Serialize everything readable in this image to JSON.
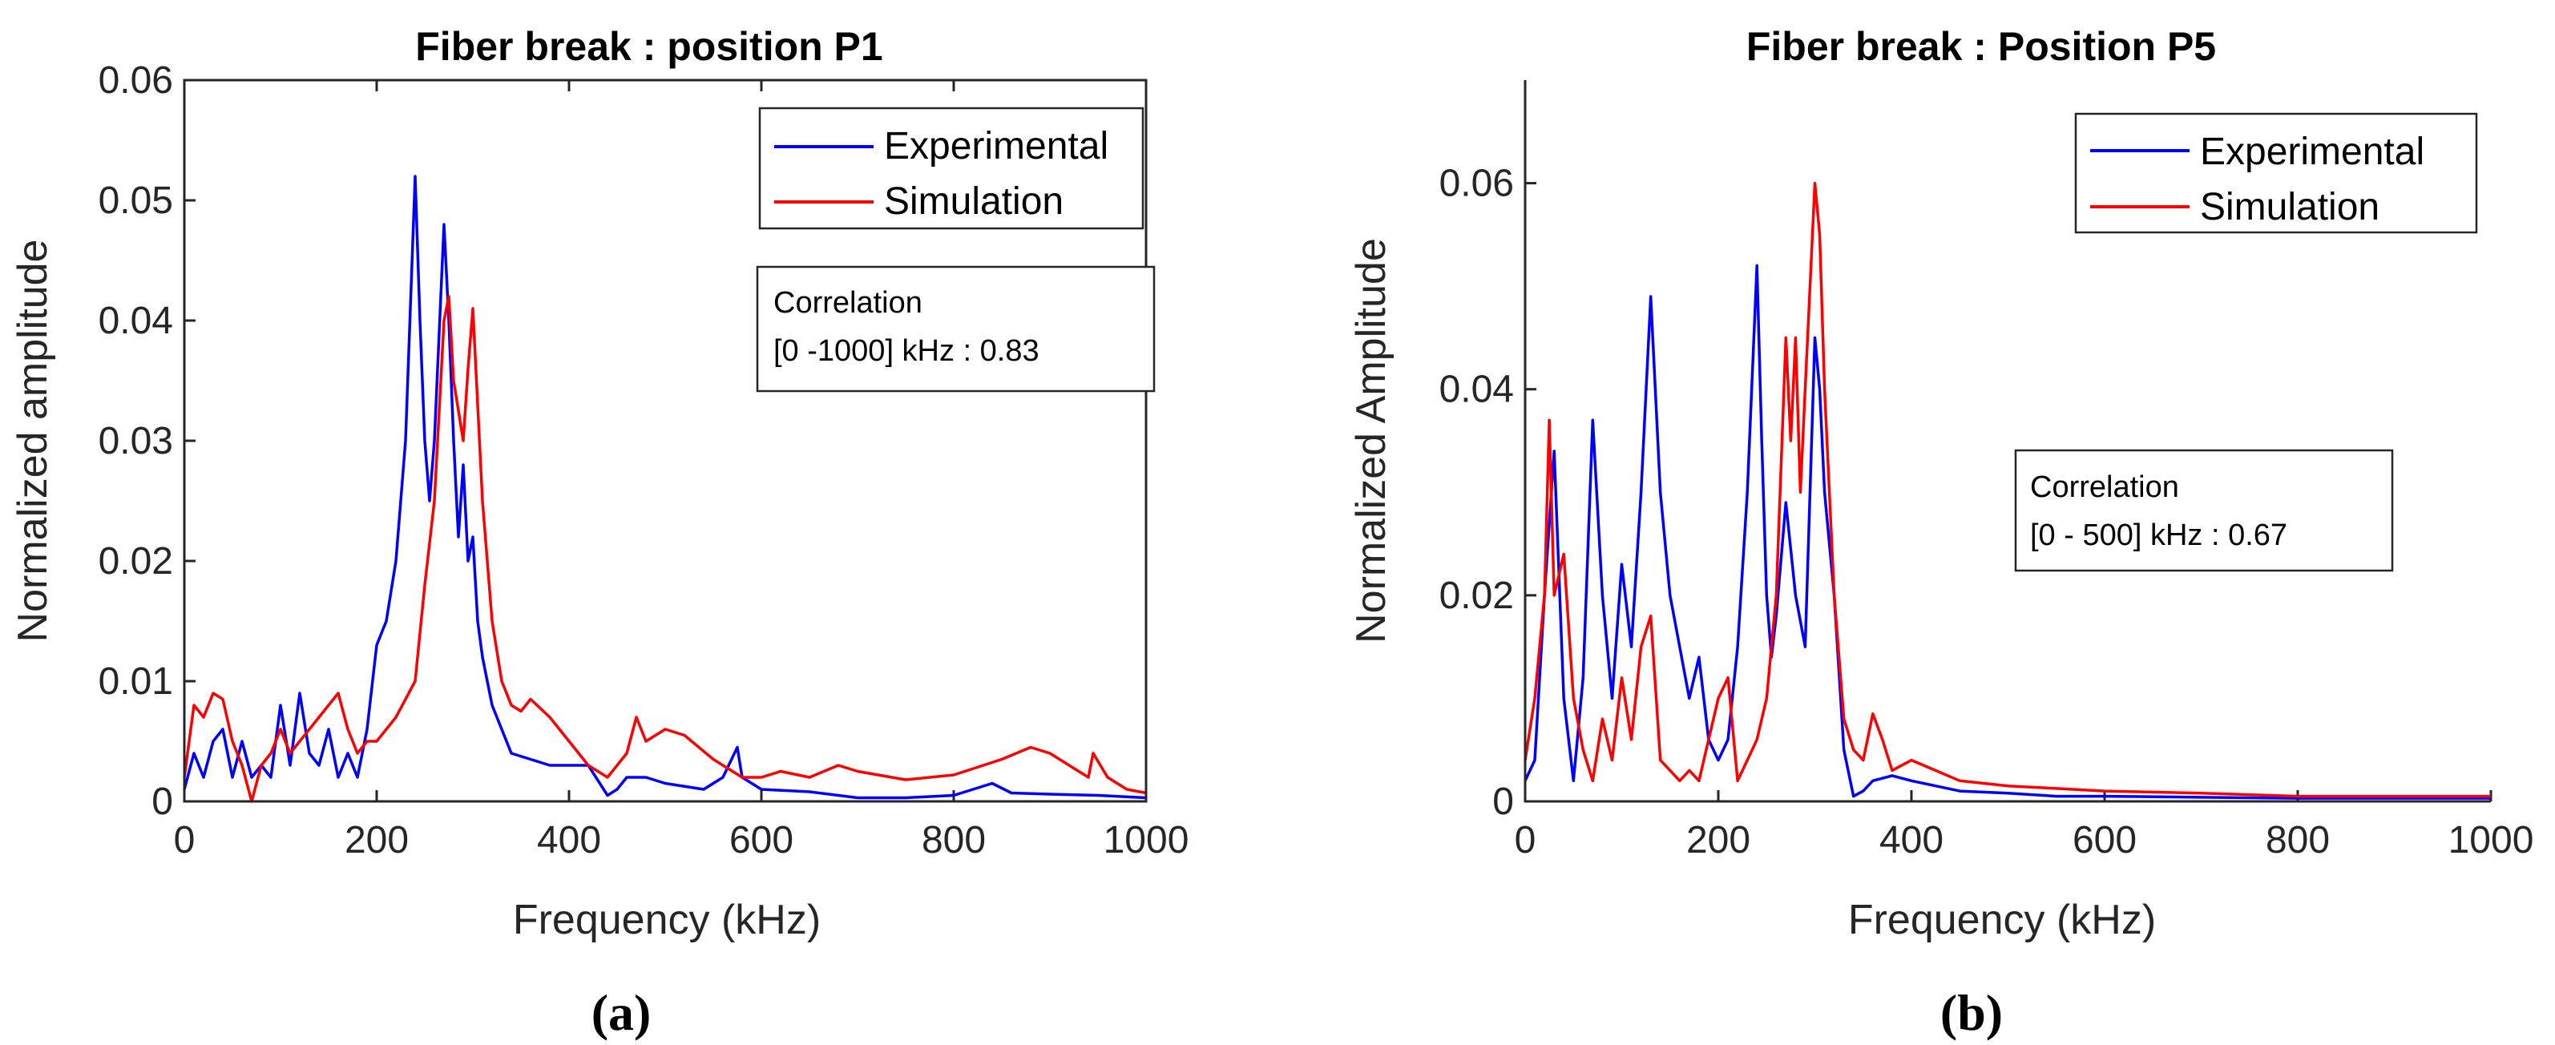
{
  "colors": {
    "experimental": "#0000ff",
    "simulation": "#ff0000",
    "axis": "#262626"
  },
  "chart_data": [
    {
      "type": "line",
      "panel_label": "(a)",
      "title": "Fiber break : position P1",
      "xlabel": "Frequency (kHz)",
      "ylabel": "Normalized amplitude",
      "xlim": [
        0,
        1000
      ],
      "ylim": [
        0,
        0.06
      ],
      "xticks": [
        0,
        200,
        400,
        600,
        800,
        1000
      ],
      "xtick_labels": [
        "0",
        "200",
        "400",
        "600",
        "800",
        "1000"
      ],
      "yticks": [
        0,
        0.01,
        0.02,
        0.03,
        0.04,
        0.05,
        0.06
      ],
      "ytick_labels": [
        "0",
        "0.01",
        "0.02",
        "0.03",
        "0.04",
        "0.05",
        "0.06"
      ],
      "legend": {
        "placement": "top-right",
        "entries": [
          "Experimental",
          "Simulation"
        ]
      },
      "annotation": [
        "Correlation",
        "[0 -1000] kHz : 0.83"
      ],
      "series": [
        {
          "name": "Experimental",
          "x": [
            0,
            10,
            20,
            30,
            40,
            50,
            60,
            70,
            80,
            90,
            100,
            110,
            120,
            130,
            140,
            150,
            160,
            170,
            180,
            190,
            200,
            210,
            220,
            230,
            240,
            245,
            250,
            255,
            260,
            270,
            275,
            280,
            285,
            290,
            295,
            300,
            305,
            310,
            320,
            330,
            340,
            360,
            380,
            400,
            420,
            440,
            450,
            460,
            480,
            500,
            540,
            560,
            575,
            580,
            600,
            650,
            700,
            750,
            800,
            840,
            860,
            900,
            950,
            1000
          ],
          "y": [
            0.001,
            0.004,
            0.002,
            0.005,
            0.006,
            0.002,
            0.005,
            0.002,
            0.003,
            0.002,
            0.008,
            0.003,
            0.009,
            0.004,
            0.003,
            0.006,
            0.002,
            0.004,
            0.002,
            0.006,
            0.013,
            0.015,
            0.02,
            0.03,
            0.052,
            0.04,
            0.03,
            0.025,
            0.03,
            0.048,
            0.04,
            0.03,
            0.022,
            0.028,
            0.02,
            0.022,
            0.015,
            0.012,
            0.008,
            0.006,
            0.004,
            0.0035,
            0.003,
            0.003,
            0.003,
            0.0005,
            0.001,
            0.002,
            0.002,
            0.0015,
            0.001,
            0.002,
            0.0045,
            0.002,
            0.001,
            0.0008,
            0.0003,
            0.0003,
            0.0005,
            0.0015,
            0.0007,
            0.0006,
            0.0005,
            0.0003
          ]
        },
        {
          "name": "Simulation",
          "x": [
            0,
            10,
            20,
            30,
            40,
            50,
            60,
            70,
            80,
            90,
            100,
            110,
            120,
            140,
            160,
            170,
            180,
            190,
            200,
            220,
            240,
            250,
            260,
            270,
            275,
            280,
            290,
            295,
            300,
            310,
            320,
            330,
            340,
            350,
            360,
            380,
            400,
            420,
            440,
            460,
            470,
            480,
            500,
            520,
            550,
            580,
            600,
            620,
            650,
            680,
            700,
            750,
            800,
            850,
            880,
            900,
            920,
            940,
            945,
            960,
            980,
            1000
          ],
          "y": [
            0.002,
            0.008,
            0.007,
            0.009,
            0.0085,
            0.005,
            0.003,
            0,
            0.003,
            0.004,
            0.006,
            0.004,
            0.005,
            0.007,
            0.009,
            0.006,
            0.004,
            0.005,
            0.005,
            0.007,
            0.01,
            0.018,
            0.025,
            0.04,
            0.042,
            0.035,
            0.03,
            0.036,
            0.041,
            0.025,
            0.015,
            0.01,
            0.008,
            0.0075,
            0.0085,
            0.007,
            0.005,
            0.003,
            0.002,
            0.004,
            0.007,
            0.005,
            0.006,
            0.0055,
            0.0035,
            0.002,
            0.002,
            0.0025,
            0.002,
            0.003,
            0.0025,
            0.0018,
            0.0022,
            0.0035,
            0.0045,
            0.004,
            0.003,
            0.002,
            0.004,
            0.002,
            0.001,
            0.0007
          ]
        }
      ]
    },
    {
      "type": "line",
      "panel_label": "(b)",
      "title": "Fiber break : Position P5",
      "xlabel": "Frequency (kHz)",
      "ylabel": "Normalized Amplitude",
      "xlim": [
        0,
        1000
      ],
      "ylim": [
        0,
        0.07
      ],
      "xticks": [
        0,
        200,
        400,
        600,
        800,
        1000
      ],
      "xtick_labels": [
        "0",
        "200",
        "400",
        "600",
        "800",
        "1000"
      ],
      "yticks": [
        0,
        0.02,
        0.04,
        0.06
      ],
      "ytick_labels": [
        "0",
        "0.02",
        "0.04",
        "0.06"
      ],
      "legend": {
        "placement": "top-right",
        "entries": [
          "Experimental",
          "Simulation"
        ]
      },
      "annotation": [
        "Correlation",
        "[0 - 500] kHz : 0.67"
      ],
      "series": [
        {
          "name": "Experimental",
          "x": [
            0,
            10,
            20,
            30,
            40,
            50,
            60,
            70,
            80,
            90,
            100,
            110,
            120,
            130,
            140,
            150,
            160,
            170,
            180,
            190,
            200,
            210,
            220,
            230,
            240,
            245,
            250,
            255,
            260,
            270,
            280,
            290,
            300,
            305,
            310,
            320,
            330,
            340,
            350,
            360,
            380,
            400,
            450,
            500,
            550,
            600,
            700,
            800,
            900,
            1000
          ],
          "y": [
            0.002,
            0.004,
            0.02,
            0.034,
            0.01,
            0.002,
            0.012,
            0.037,
            0.02,
            0.01,
            0.023,
            0.015,
            0.03,
            0.049,
            0.03,
            0.02,
            0.015,
            0.01,
            0.014,
            0.006,
            0.004,
            0.006,
            0.015,
            0.03,
            0.052,
            0.035,
            0.02,
            0.014,
            0.018,
            0.029,
            0.02,
            0.015,
            0.045,
            0.04,
            0.03,
            0.02,
            0.005,
            0.0005,
            0.001,
            0.002,
            0.0025,
            0.002,
            0.001,
            0.0008,
            0.0005,
            0.0005,
            0.0004,
            0.0003,
            0.0003,
            0.0003
          ]
        },
        {
          "name": "Simulation",
          "x": [
            0,
            10,
            20,
            25,
            30,
            40,
            50,
            60,
            70,
            80,
            90,
            100,
            110,
            120,
            130,
            140,
            150,
            160,
            170,
            180,
            190,
            200,
            210,
            220,
            230,
            240,
            250,
            260,
            270,
            275,
            280,
            285,
            290,
            300,
            305,
            310,
            320,
            330,
            340,
            350,
            360,
            370,
            380,
            400,
            450,
            500,
            600,
            700,
            800,
            900,
            1000
          ],
          "y": [
            0.004,
            0.01,
            0.02,
            0.037,
            0.02,
            0.024,
            0.01,
            0.005,
            0.002,
            0.008,
            0.004,
            0.012,
            0.006,
            0.015,
            0.018,
            0.004,
            0.003,
            0.002,
            0.003,
            0.002,
            0.006,
            0.01,
            0.012,
            0.002,
            0.004,
            0.006,
            0.01,
            0.02,
            0.045,
            0.035,
            0.045,
            0.03,
            0.04,
            0.06,
            0.055,
            0.04,
            0.02,
            0.008,
            0.005,
            0.004,
            0.0085,
            0.006,
            0.003,
            0.004,
            0.002,
            0.0015,
            0.001,
            0.0008,
            0.0005,
            0.0005,
            0.0005
          ]
        }
      ]
    }
  ]
}
